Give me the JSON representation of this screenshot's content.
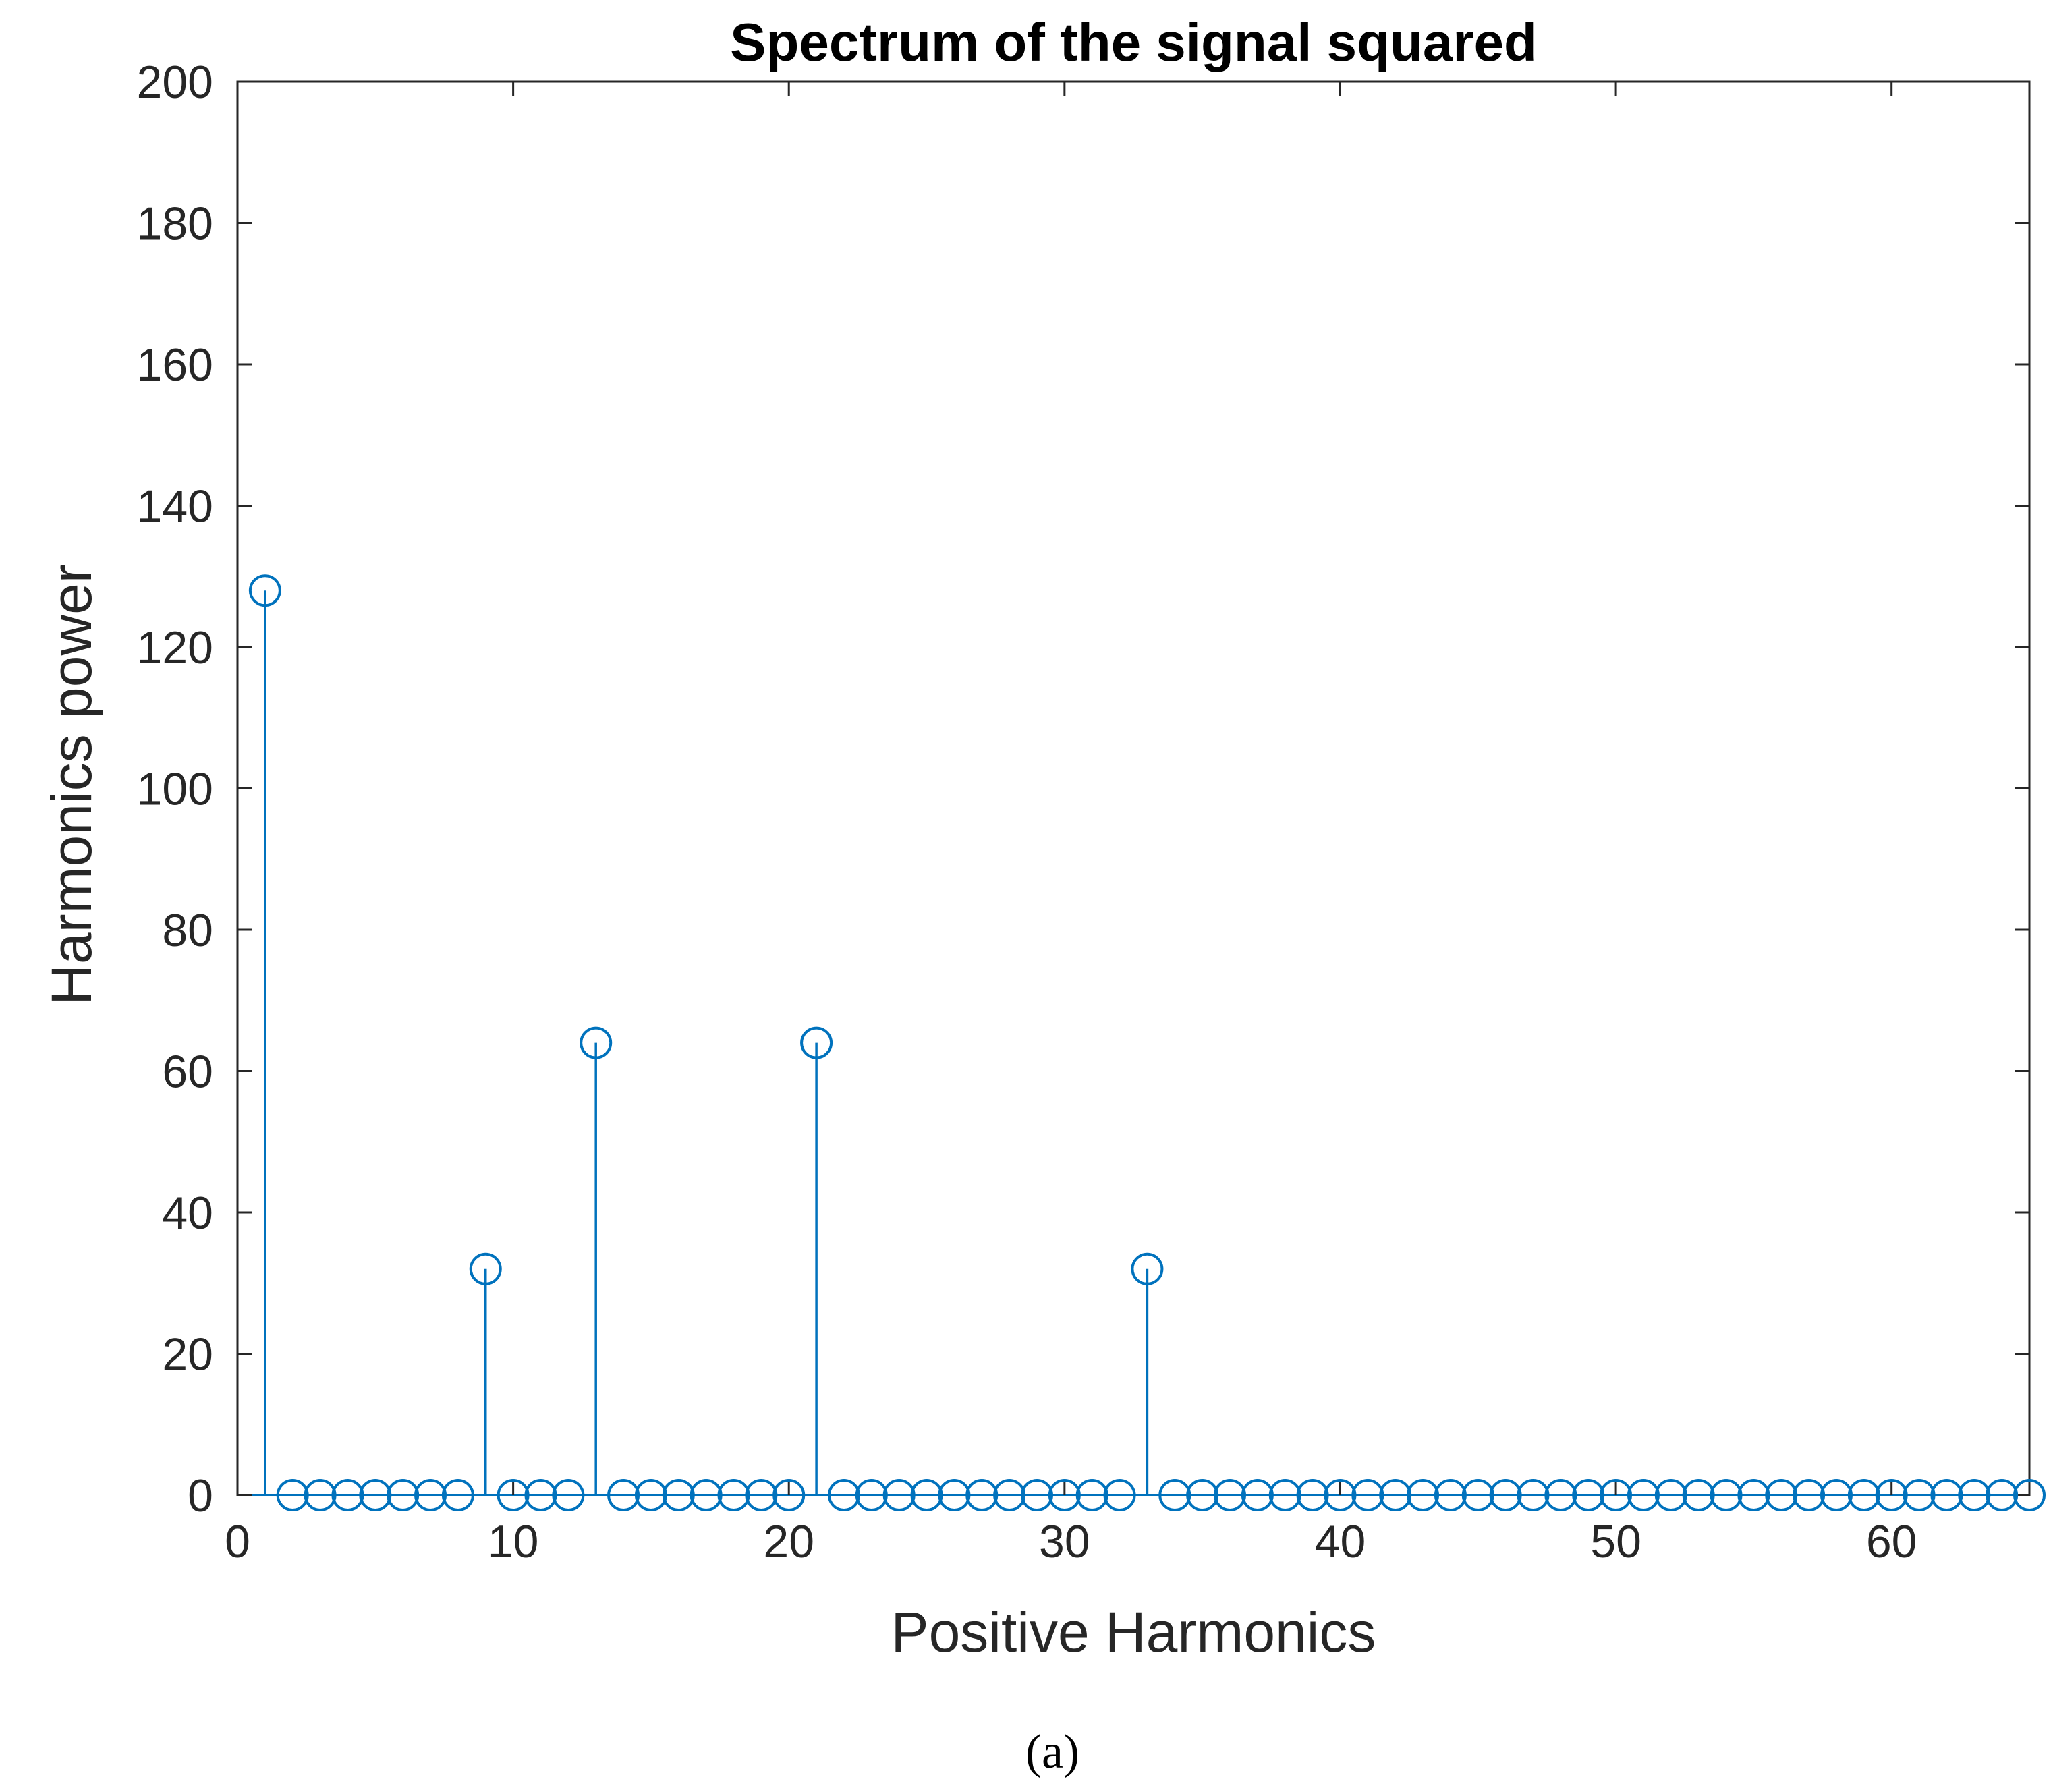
{
  "chart_data": {
    "type": "stem",
    "title": "Spectrum of the signal squared",
    "xlabel": "Positive Harmonics",
    "ylabel": "Harmonics power",
    "xlim": [
      0,
      65
    ],
    "ylim": [
      0,
      200
    ],
    "xticks": [
      0,
      10,
      20,
      30,
      40,
      50,
      60
    ],
    "yticks": [
      0,
      20,
      40,
      60,
      80,
      100,
      120,
      140,
      160,
      180,
      200
    ],
    "grid": false,
    "legend": null,
    "color": "#0072BD",
    "panel_label": "(a)",
    "x": [
      1,
      2,
      3,
      4,
      5,
      6,
      7,
      8,
      9,
      10,
      11,
      12,
      13,
      14,
      15,
      16,
      17,
      18,
      19,
      20,
      21,
      22,
      23,
      24,
      25,
      26,
      27,
      28,
      29,
      30,
      31,
      32,
      33,
      34,
      35,
      36,
      37,
      38,
      39,
      40,
      41,
      42,
      43,
      44,
      45,
      46,
      47,
      48,
      49,
      50,
      51,
      52,
      53,
      54,
      55,
      56,
      57,
      58,
      59,
      60,
      61,
      62,
      63,
      64,
      65
    ],
    "values": [
      128,
      0,
      0,
      0,
      0,
      0,
      0,
      0,
      32,
      0,
      0,
      0,
      64,
      0,
      0,
      0,
      0,
      0,
      0,
      0,
      64,
      0,
      0,
      0,
      0,
      0,
      0,
      0,
      0,
      0,
      0,
      0,
      32,
      0,
      0,
      0,
      0,
      0,
      0,
      0,
      0,
      0,
      0,
      0,
      0,
      0,
      0,
      0,
      0,
      0,
      0,
      0,
      0,
      0,
      0,
      0,
      0,
      0,
      0,
      0,
      0,
      0,
      0,
      0,
      0
    ]
  }
}
